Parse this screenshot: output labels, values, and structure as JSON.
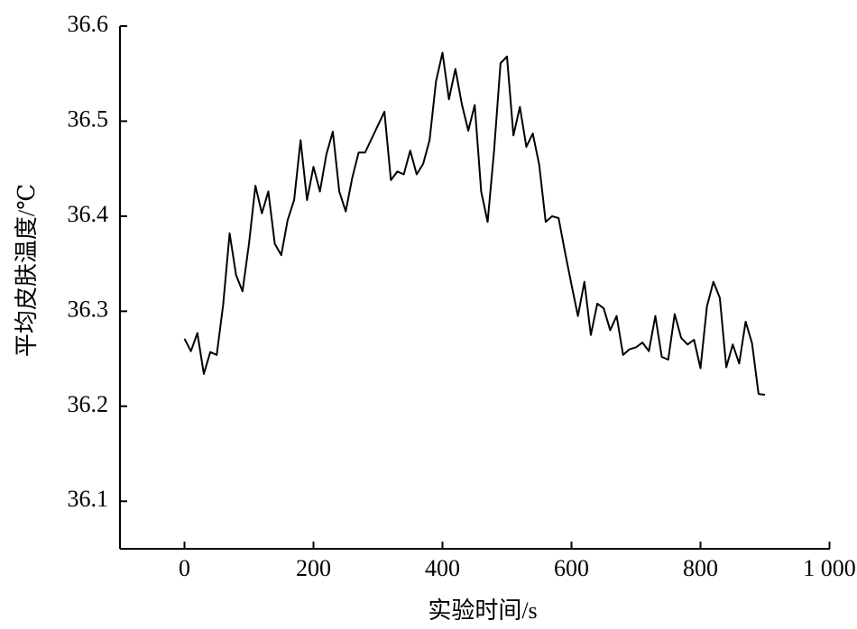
{
  "chart_data": {
    "type": "line",
    "xlabel": "实验时间/s",
    "ylabel": "平均皮肤温度/℃",
    "x": [
      0,
      10,
      20,
      30,
      40,
      50,
      60,
      70,
      80,
      90,
      100,
      110,
      120,
      130,
      140,
      150,
      160,
      170,
      180,
      190,
      200,
      210,
      220,
      230,
      240,
      250,
      260,
      270,
      280,
      310,
      320,
      330,
      340,
      350,
      360,
      370,
      380,
      390,
      400,
      410,
      420,
      430,
      440,
      450,
      460,
      470,
      480,
      490,
      500,
      510,
      520,
      530,
      540,
      550,
      560,
      570,
      580,
      590,
      600,
      610,
      620,
      630,
      640,
      650,
      660,
      670,
      680,
      690,
      700,
      710,
      720,
      730,
      740,
      750,
      760,
      770,
      780,
      790,
      800,
      810,
      820,
      830,
      840,
      850,
      860,
      870,
      880,
      890,
      900
    ],
    "series": [
      {
        "color": "#000000",
        "values": [
          36.271,
          36.258,
          36.277,
          36.234,
          36.257,
          36.254,
          36.307,
          36.382,
          36.338,
          36.321,
          36.371,
          36.432,
          36.403,
          36.426,
          36.371,
          36.359,
          36.396,
          36.417,
          36.48,
          36.417,
          36.452,
          36.426,
          36.465,
          36.489,
          36.426,
          36.405,
          36.44,
          36.467,
          36.467,
          36.51,
          36.438,
          36.447,
          36.444,
          36.469,
          36.444,
          36.455,
          36.48,
          36.542,
          36.572,
          36.523,
          36.555,
          36.518,
          36.49,
          36.517,
          36.426,
          36.394,
          36.469,
          36.561,
          36.568,
          36.485,
          36.515,
          36.473,
          36.487,
          36.454,
          36.394,
          36.4,
          36.398,
          36.362,
          36.328,
          36.295,
          36.331,
          36.275,
          36.308,
          36.303,
          36.28,
          36.295,
          36.254,
          36.26,
          36.262,
          36.267,
          36.258,
          36.295,
          36.252,
          36.249,
          36.297,
          36.272,
          36.265,
          36.27,
          36.24,
          36.305,
          36.331,
          36.314,
          36.241,
          36.265,
          36.245,
          36.289,
          36.266,
          36.213,
          36.212
        ]
      }
    ],
    "xlim": [
      -100,
      1000
    ],
    "xticks": [
      0,
      200,
      400,
      600,
      800,
      {
        "value": 1000,
        "label": "1 000"
      }
    ],
    "ylim": [
      36.05,
      36.6
    ],
    "yticks": [
      36.1,
      36.2,
      36.3,
      36.4,
      36.5,
      36.6
    ]
  }
}
